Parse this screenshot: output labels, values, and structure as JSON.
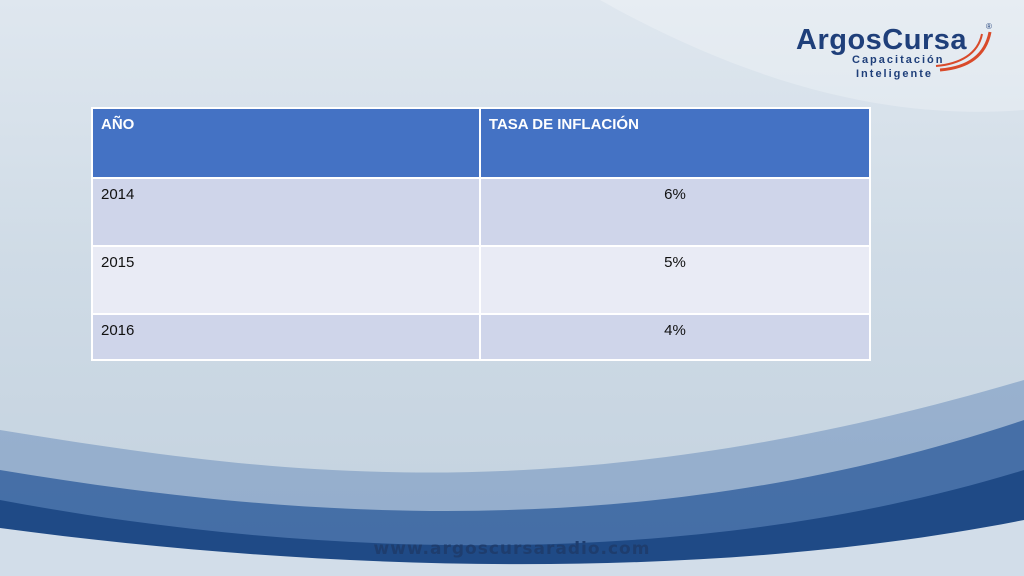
{
  "logo": {
    "name_part1": "Argos",
    "name_part2": "Cursa",
    "line1": "Capacitación",
    "line2": "Inteligente",
    "registered": "®"
  },
  "table": {
    "headers": [
      "AÑO",
      "TASA DE INFLACIÓN"
    ],
    "rows": [
      [
        "2014",
        "6%"
      ],
      [
        "2015",
        "5%"
      ],
      [
        "2016",
        "4%"
      ]
    ]
  },
  "footer": {
    "url": "www.argoscursaradio.com"
  },
  "colors": {
    "header_blue": "#4472c4",
    "row_dark": "#cfd5ea",
    "row_light": "#e9ebf5",
    "swoosh_blue": "#2b5a9a",
    "logo_orange": "#d94a2a"
  }
}
